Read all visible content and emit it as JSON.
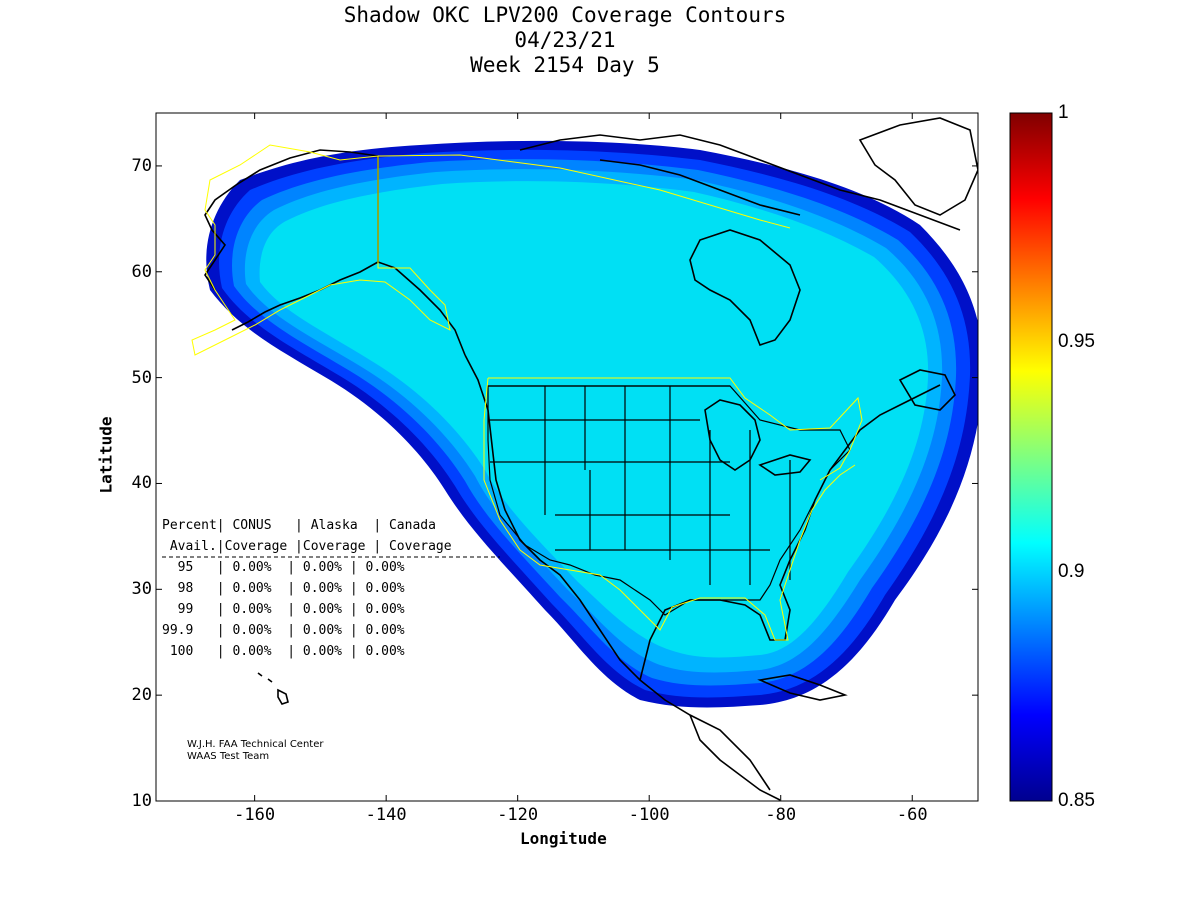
{
  "title_lines": [
    "Shadow OKC LPV200 Coverage Contours",
    "04/23/21",
    "Week 2154 Day 5"
  ],
  "axes": {
    "xlabel": "Longitude",
    "ylabel": "Latitude",
    "x_ticks": [
      "-160",
      "-140",
      "-120",
      "-100",
      "-80",
      "-60"
    ],
    "y_ticks": [
      "70",
      "60",
      "50",
      "40",
      "30",
      "20",
      "10"
    ],
    "xlim": [
      -175,
      -50
    ],
    "ylim": [
      10,
      75
    ]
  },
  "colorbar": {
    "ticks": [
      "1",
      "0.95",
      "0.9",
      "0.85"
    ],
    "range": [
      0.85,
      1
    ],
    "colormap": "jet"
  },
  "stats_table": {
    "header1": "Percent| CONUS   | Alaska  | Canada",
    "header2": " Avail.|Coverage |Coverage | Coverage",
    "separator": "-----------------------------------------",
    "rows": [
      "  95   | 0.00%  | 0.00% | 0.00%",
      "  98   | 0.00%  | 0.00% | 0.00%",
      "  99   | 0.00%  | 0.00% | 0.00%",
      "99.9   | 0.00%  | 0.00% | 0.00%",
      " 100   | 0.00%  | 0.00% | 0.00%"
    ]
  },
  "credits": [
    "W.J.H. FAA Technical Center",
    "WAAS Test Team"
  ],
  "colors": {
    "coverage_main": "#00e0f4",
    "coverage_edge_1": "#00b4ff",
    "coverage_edge_2": "#0084ff",
    "coverage_edge_3": "#0040ff",
    "coverage_edge_4": "#0010c8",
    "region_outline": "#ffff00",
    "coastline": "#000000"
  }
}
